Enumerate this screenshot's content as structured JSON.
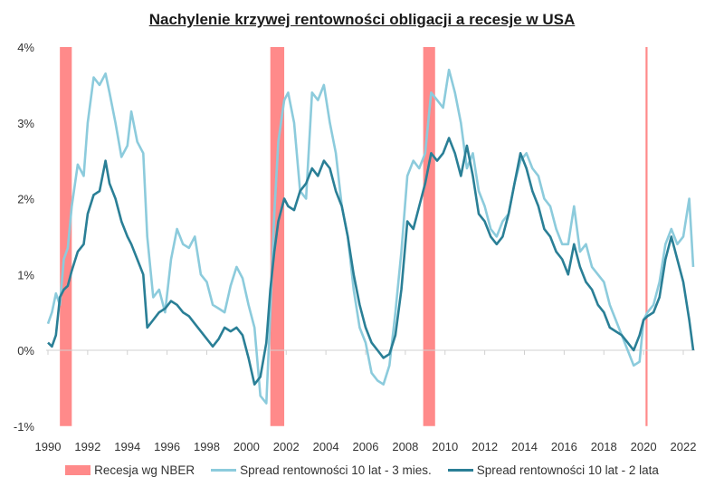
{
  "chart_data": {
    "type": "line",
    "title": "Nachylenie krzywej rentowności obligacji a recesje w USA",
    "xlabel": "",
    "ylabel": "",
    "xlim": [
      1990,
      2022.6
    ],
    "ylim": [
      -1,
      4
    ],
    "x_ticks": [
      "1990",
      "1992",
      "1994",
      "1996",
      "1998",
      "2000",
      "2002",
      "2004",
      "2006",
      "2008",
      "2010",
      "2012",
      "2014",
      "2016",
      "2018",
      "2020",
      "2022"
    ],
    "y_ticks": [
      "-1%",
      "0%",
      "1%",
      "2%",
      "3%",
      "4%"
    ],
    "grid": false,
    "legend_position": "bottom",
    "colors": {
      "recession": "#ff8a8a",
      "spread_10y3m": "#8ccbdc",
      "spread_10y2y": "#2a7f96",
      "zero_line": "#d0d0d0"
    },
    "recessions": [
      {
        "start": 1990.6,
        "end": 1991.2
      },
      {
        "start": 2001.2,
        "end": 2001.9
      },
      {
        "start": 2008.9,
        "end": 2009.5
      },
      {
        "start": 2020.1,
        "end": 2020.2
      }
    ],
    "series": [
      {
        "name": "Spread rentowności 10 lat - 3 mies.",
        "key": "spread_10y3m",
        "x": [
          1990.0,
          1990.2,
          1990.4,
          1990.6,
          1990.8,
          1991.0,
          1991.2,
          1991.5,
          1991.8,
          1992.0,
          1992.3,
          1992.6,
          1992.9,
          1993.1,
          1993.4,
          1993.7,
          1994.0,
          1994.2,
          1994.5,
          1994.8,
          1995.0,
          1995.3,
          1995.6,
          1995.9,
          1996.2,
          1996.5,
          1996.8,
          1997.1,
          1997.4,
          1997.7,
          1998.0,
          1998.3,
          1998.6,
          1998.9,
          1999.2,
          1999.5,
          1999.8,
          2000.1,
          2000.4,
          2000.7,
          2001.0,
          2001.2,
          2001.4,
          2001.6,
          2001.9,
          2002.1,
          2002.4,
          2002.7,
          2003.0,
          2003.3,
          2003.6,
          2003.9,
          2004.2,
          2004.5,
          2004.8,
          2005.1,
          2005.4,
          2005.7,
          2006.0,
          2006.3,
          2006.6,
          2006.9,
          2007.2,
          2007.5,
          2007.8,
          2008.1,
          2008.4,
          2008.7,
          2009.0,
          2009.3,
          2009.6,
          2009.9,
          2010.2,
          2010.5,
          2010.8,
          2011.1,
          2011.4,
          2011.7,
          2012.0,
          2012.3,
          2012.6,
          2012.9,
          2013.2,
          2013.5,
          2013.8,
          2014.1,
          2014.4,
          2014.7,
          2015.0,
          2015.3,
          2015.6,
          2015.9,
          2016.2,
          2016.5,
          2016.8,
          2017.1,
          2017.4,
          2017.7,
          2018.0,
          2018.3,
          2018.6,
          2018.9,
          2019.2,
          2019.5,
          2019.8,
          2020.0,
          2020.2,
          2020.5,
          2020.8,
          2021.1,
          2021.4,
          2021.7,
          2022.0,
          2022.3,
          2022.5
        ],
        "values": [
          0.35,
          0.5,
          0.75,
          0.6,
          1.2,
          1.35,
          1.9,
          2.45,
          2.3,
          3.0,
          3.6,
          3.5,
          3.65,
          3.4,
          3.0,
          2.55,
          2.7,
          3.15,
          2.75,
          2.6,
          1.5,
          0.7,
          0.8,
          0.5,
          1.2,
          1.6,
          1.4,
          1.35,
          1.5,
          1.0,
          0.9,
          0.6,
          0.55,
          0.5,
          0.85,
          1.1,
          0.95,
          0.6,
          0.3,
          -0.6,
          -0.7,
          0.5,
          1.8,
          2.75,
          3.3,
          3.4,
          3.0,
          2.1,
          2.0,
          3.4,
          3.3,
          3.5,
          3.0,
          2.6,
          1.9,
          1.5,
          0.8,
          0.3,
          0.1,
          -0.3,
          -0.4,
          -0.45,
          -0.2,
          0.5,
          1.3,
          2.3,
          2.5,
          2.4,
          2.6,
          3.4,
          3.3,
          3.2,
          3.7,
          3.4,
          3.0,
          2.4,
          2.6,
          2.1,
          1.9,
          1.6,
          1.5,
          1.7,
          1.8,
          2.2,
          2.5,
          2.6,
          2.4,
          2.3,
          2.0,
          1.9,
          1.6,
          1.4,
          1.4,
          1.9,
          1.3,
          1.4,
          1.1,
          1.0,
          0.9,
          0.6,
          0.4,
          0.2,
          0.0,
          -0.2,
          -0.15,
          0.4,
          0.5,
          0.6,
          0.9,
          1.4,
          1.6,
          1.4,
          1.5,
          2.0,
          1.1
        ],
        "color": "#8ccbdc"
      },
      {
        "name": "Spread rentowności 10 lat - 2 lata",
        "key": "spread_10y2y",
        "x": [
          1990.0,
          1990.2,
          1990.4,
          1990.6,
          1990.8,
          1991.0,
          1991.2,
          1991.5,
          1991.8,
          1992.0,
          1992.3,
          1992.6,
          1992.9,
          1993.1,
          1993.4,
          1993.7,
          1994.0,
          1994.2,
          1994.5,
          1994.8,
          1995.0,
          1995.3,
          1995.6,
          1995.9,
          1996.2,
          1996.5,
          1996.8,
          1997.1,
          1997.4,
          1997.7,
          1998.0,
          1998.3,
          1998.6,
          1998.9,
          1999.2,
          1999.5,
          1999.8,
          2000.1,
          2000.4,
          2000.7,
          2001.0,
          2001.2,
          2001.4,
          2001.6,
          2001.9,
          2002.1,
          2002.4,
          2002.7,
          2003.0,
          2003.3,
          2003.6,
          2003.9,
          2004.2,
          2004.5,
          2004.8,
          2005.1,
          2005.4,
          2005.7,
          2006.0,
          2006.3,
          2006.6,
          2006.9,
          2007.2,
          2007.5,
          2007.8,
          2008.1,
          2008.4,
          2008.7,
          2009.0,
          2009.3,
          2009.6,
          2009.9,
          2010.2,
          2010.5,
          2010.8,
          2011.1,
          2011.4,
          2011.7,
          2012.0,
          2012.3,
          2012.6,
          2012.9,
          2013.2,
          2013.5,
          2013.8,
          2014.1,
          2014.4,
          2014.7,
          2015.0,
          2015.3,
          2015.6,
          2015.9,
          2016.2,
          2016.5,
          2016.8,
          2017.1,
          2017.4,
          2017.7,
          2018.0,
          2018.3,
          2018.6,
          2018.9,
          2019.2,
          2019.5,
          2019.8,
          2020.0,
          2020.2,
          2020.5,
          2020.8,
          2021.1,
          2021.4,
          2021.7,
          2022.0,
          2022.3,
          2022.5
        ],
        "values": [
          0.1,
          0.05,
          0.2,
          0.7,
          0.8,
          0.85,
          1.05,
          1.3,
          1.4,
          1.8,
          2.05,
          2.1,
          2.5,
          2.2,
          2.0,
          1.7,
          1.5,
          1.4,
          1.2,
          1.0,
          0.3,
          0.4,
          0.5,
          0.55,
          0.65,
          0.6,
          0.5,
          0.45,
          0.35,
          0.25,
          0.15,
          0.05,
          0.15,
          0.3,
          0.25,
          0.3,
          0.2,
          -0.1,
          -0.45,
          -0.35,
          0.1,
          0.8,
          1.3,
          1.7,
          2.0,
          1.9,
          1.85,
          2.1,
          2.2,
          2.4,
          2.3,
          2.5,
          2.4,
          2.1,
          1.9,
          1.5,
          1.0,
          0.6,
          0.3,
          0.1,
          0.0,
          -0.1,
          -0.05,
          0.2,
          0.8,
          1.7,
          1.6,
          1.9,
          2.2,
          2.6,
          2.5,
          2.6,
          2.8,
          2.6,
          2.3,
          2.7,
          2.3,
          1.8,
          1.7,
          1.5,
          1.4,
          1.5,
          1.8,
          2.2,
          2.6,
          2.4,
          2.1,
          1.9,
          1.6,
          1.5,
          1.3,
          1.2,
          1.0,
          1.4,
          1.1,
          0.9,
          0.8,
          0.6,
          0.5,
          0.3,
          0.25,
          0.2,
          0.1,
          0.0,
          0.2,
          0.4,
          0.45,
          0.5,
          0.7,
          1.2,
          1.5,
          1.2,
          0.9,
          0.4,
          0.0
        ],
        "color": "#2a7f96"
      }
    ]
  },
  "legend": {
    "recession_label": "Recesja wg NBER",
    "series1_label": "Spread rentowności 10 lat - 3 mies.",
    "series2_label": "Spread rentowności 10 lat - 2 lata"
  }
}
